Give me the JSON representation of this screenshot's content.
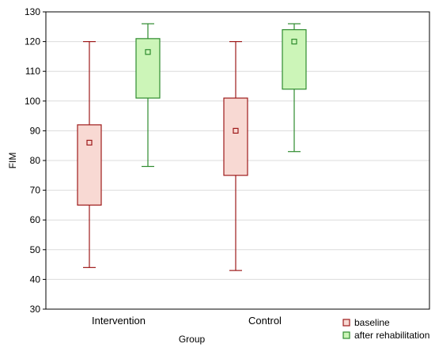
{
  "chart_data": {
    "type": "boxplot",
    "title": "",
    "xlabel": "Group",
    "ylabel": "FIM",
    "ylim": [
      30,
      130
    ],
    "yticks": [
      30,
      40,
      50,
      60,
      70,
      80,
      90,
      100,
      110,
      120,
      130
    ],
    "grid": "horizontal",
    "legend_position": "bottom-right",
    "categories": [
      "Intervention",
      "Control"
    ],
    "series": [
      {
        "name": "baseline",
        "color": "#9e1b1b",
        "fill": "#f8d9d3",
        "boxes": [
          {
            "min": 44,
            "q1": 65,
            "median": 86,
            "q3": 92,
            "max": 120
          },
          {
            "min": 43,
            "q1": 75,
            "median": 90,
            "q3": 101,
            "max": 120
          }
        ]
      },
      {
        "name": "after rehabilitation",
        "color": "#2e8b2e",
        "fill": "#ccf5b8",
        "boxes": [
          {
            "min": 78,
            "q1": 101,
            "median": 116.5,
            "q3": 121,
            "max": 126
          },
          {
            "min": 83,
            "q1": 104,
            "median": 120,
            "q3": 124,
            "max": 126
          }
        ]
      }
    ]
  }
}
